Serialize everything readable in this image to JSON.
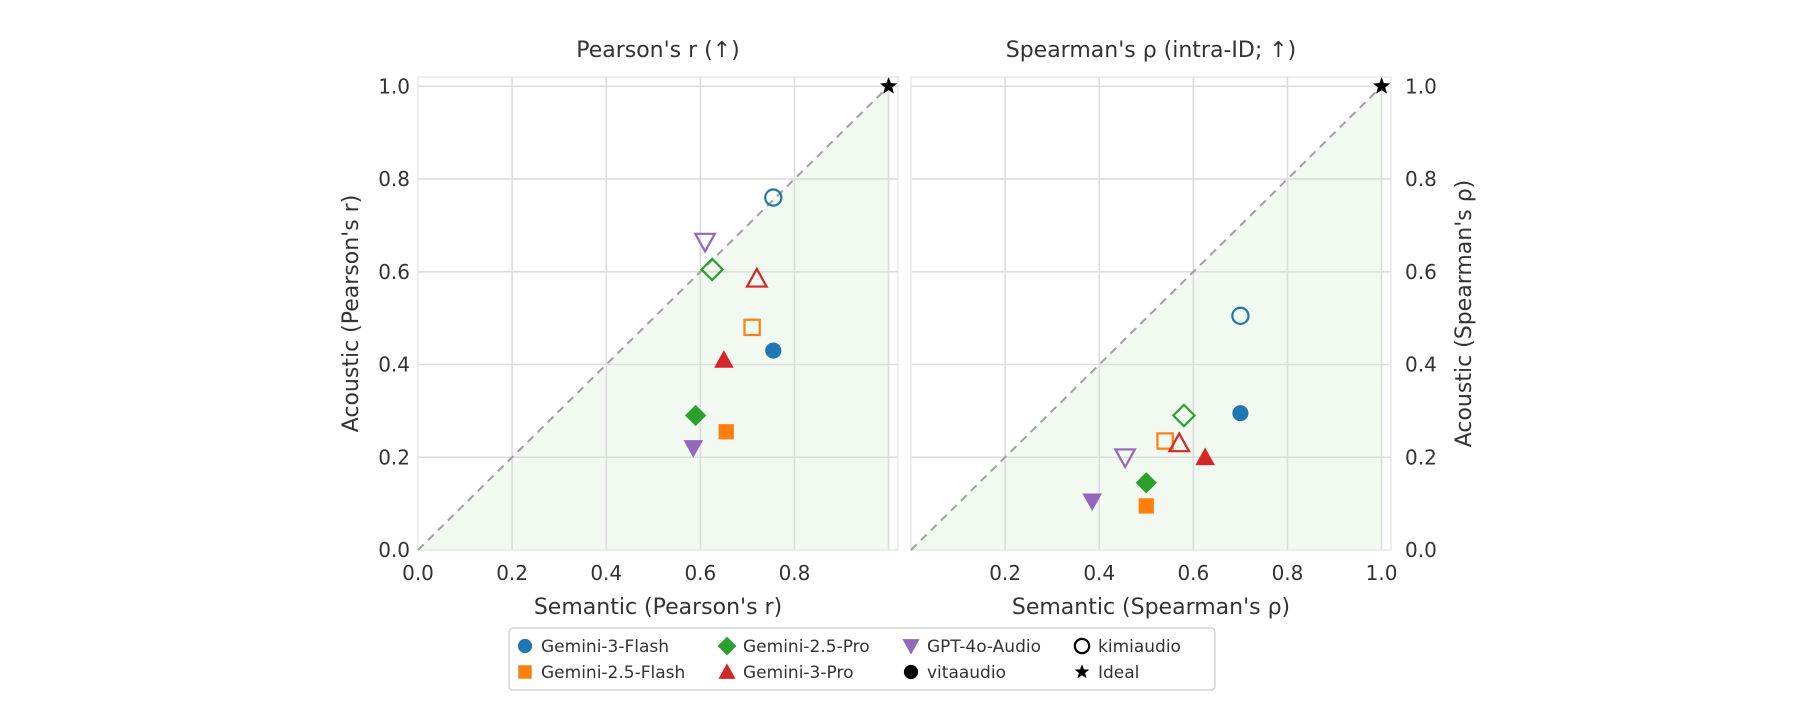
{
  "colors": {
    "Gemini-3-Flash": "#1f77b4",
    "Gemini-2.5-Flash": "#ff7f0e",
    "Gemini-2.5-Pro": "#2ca02c",
    "Gemini-3-Pro": "#d62728",
    "GPT-4o-Audio": "#9467bd",
    "ideal": "#000000",
    "diagonal": "#a0a0a0",
    "shade": "#eef7ee"
  },
  "chart_data": [
    {
      "type": "scatter",
      "title": "Pearson's r (↑)",
      "xlabel": "Semantic (Pearson's r)",
      "ylabel": "Acoustic (Pearson's r)",
      "xlim": [
        0.0,
        1.02
      ],
      "ylim": [
        0.0,
        1.02
      ],
      "xticks": [
        "0.0",
        "0.2",
        "0.4",
        "0.6",
        "0.8"
      ],
      "yticks": [
        "0.0",
        "0.2",
        "0.4",
        "0.6",
        "0.8",
        "1.0"
      ],
      "ylabel_side": "left",
      "grid": true,
      "diagonal": true,
      "series": [
        {
          "model": "Gemini-3-Flash",
          "variant": "vitaaudio",
          "x": 0.755,
          "y": 0.43
        },
        {
          "model": "Gemini-3-Flash",
          "variant": "kimiaudio",
          "x": 0.755,
          "y": 0.76
        },
        {
          "model": "Gemini-2.5-Flash",
          "variant": "vitaaudio",
          "x": 0.655,
          "y": 0.255
        },
        {
          "model": "Gemini-2.5-Flash",
          "variant": "kimiaudio",
          "x": 0.71,
          "y": 0.48
        },
        {
          "model": "Gemini-2.5-Pro",
          "variant": "vitaaudio",
          "x": 0.59,
          "y": 0.29
        },
        {
          "model": "Gemini-2.5-Pro",
          "variant": "kimiaudio",
          "x": 0.625,
          "y": 0.605
        },
        {
          "model": "Gemini-3-Pro",
          "variant": "vitaaudio",
          "x": 0.65,
          "y": 0.41
        },
        {
          "model": "Gemini-3-Pro",
          "variant": "kimiaudio",
          "x": 0.72,
          "y": 0.585
        },
        {
          "model": "GPT-4o-Audio",
          "variant": "vitaaudio",
          "x": 0.585,
          "y": 0.22
        },
        {
          "model": "GPT-4o-Audio",
          "variant": "kimiaudio",
          "x": 0.61,
          "y": 0.665
        },
        {
          "model": "Ideal",
          "variant": "ideal",
          "x": 1.0,
          "y": 1.0
        }
      ]
    },
    {
      "type": "scatter",
      "title": "Spearman's ρ (intra-ID; ↑)",
      "xlabel": "Semantic (Spearman's ρ)",
      "ylabel": "Acoustic (Spearman's ρ)",
      "xlim": [
        0.0,
        1.02
      ],
      "ylim": [
        0.0,
        1.02
      ],
      "xticks": [
        "0.2",
        "0.4",
        "0.6",
        "0.8",
        "1.0"
      ],
      "yticks": [
        "0.0",
        "0.2",
        "0.4",
        "0.6",
        "0.8",
        "1.0"
      ],
      "ylabel_side": "right",
      "grid": true,
      "diagonal": true,
      "series": [
        {
          "model": "Gemini-3-Flash",
          "variant": "vitaaudio",
          "x": 0.7,
          "y": 0.295
        },
        {
          "model": "Gemini-3-Flash",
          "variant": "kimiaudio",
          "x": 0.7,
          "y": 0.505
        },
        {
          "model": "Gemini-2.5-Flash",
          "variant": "vitaaudio",
          "x": 0.5,
          "y": 0.095
        },
        {
          "model": "Gemini-2.5-Flash",
          "variant": "kimiaudio",
          "x": 0.54,
          "y": 0.235
        },
        {
          "model": "Gemini-2.5-Pro",
          "variant": "vitaaudio",
          "x": 0.5,
          "y": 0.145
        },
        {
          "model": "Gemini-2.5-Pro",
          "variant": "kimiaudio",
          "x": 0.58,
          "y": 0.29
        },
        {
          "model": "Gemini-3-Pro",
          "variant": "vitaaudio",
          "x": 0.625,
          "y": 0.2
        },
        {
          "model": "Gemini-3-Pro",
          "variant": "kimiaudio",
          "x": 0.57,
          "y": 0.23
        },
        {
          "model": "GPT-4o-Audio",
          "variant": "vitaaudio",
          "x": 0.385,
          "y": 0.105
        },
        {
          "model": "GPT-4o-Audio",
          "variant": "kimiaudio",
          "x": 0.455,
          "y": 0.2
        },
        {
          "model": "Ideal",
          "variant": "ideal",
          "x": 1.0,
          "y": 1.0
        }
      ]
    }
  ],
  "legend": {
    "placement": "bottom-center",
    "columns": [
      [
        {
          "label": "Gemini-3-Flash",
          "marker": "circle",
          "color": "#1f77b4",
          "filled": true
        },
        {
          "label": "Gemini-2.5-Flash",
          "marker": "square",
          "color": "#ff7f0e",
          "filled": true
        }
      ],
      [
        {
          "label": "Gemini-2.5-Pro",
          "marker": "diamond",
          "color": "#2ca02c",
          "filled": true
        },
        {
          "label": "Gemini-3-Pro",
          "marker": "triangle-up",
          "color": "#d62728",
          "filled": true
        }
      ],
      [
        {
          "label": "GPT-4o-Audio",
          "marker": "triangle-down",
          "color": "#9467bd",
          "filled": true
        },
        {
          "label": "vitaaudio",
          "marker": "circle",
          "color": "#000000",
          "filled": true
        }
      ],
      [
        {
          "label": "kimiaudio",
          "marker": "circle",
          "color": "#000000",
          "filled": false
        },
        {
          "label": "Ideal",
          "marker": "star",
          "color": "#000000",
          "filled": true
        }
      ]
    ]
  }
}
